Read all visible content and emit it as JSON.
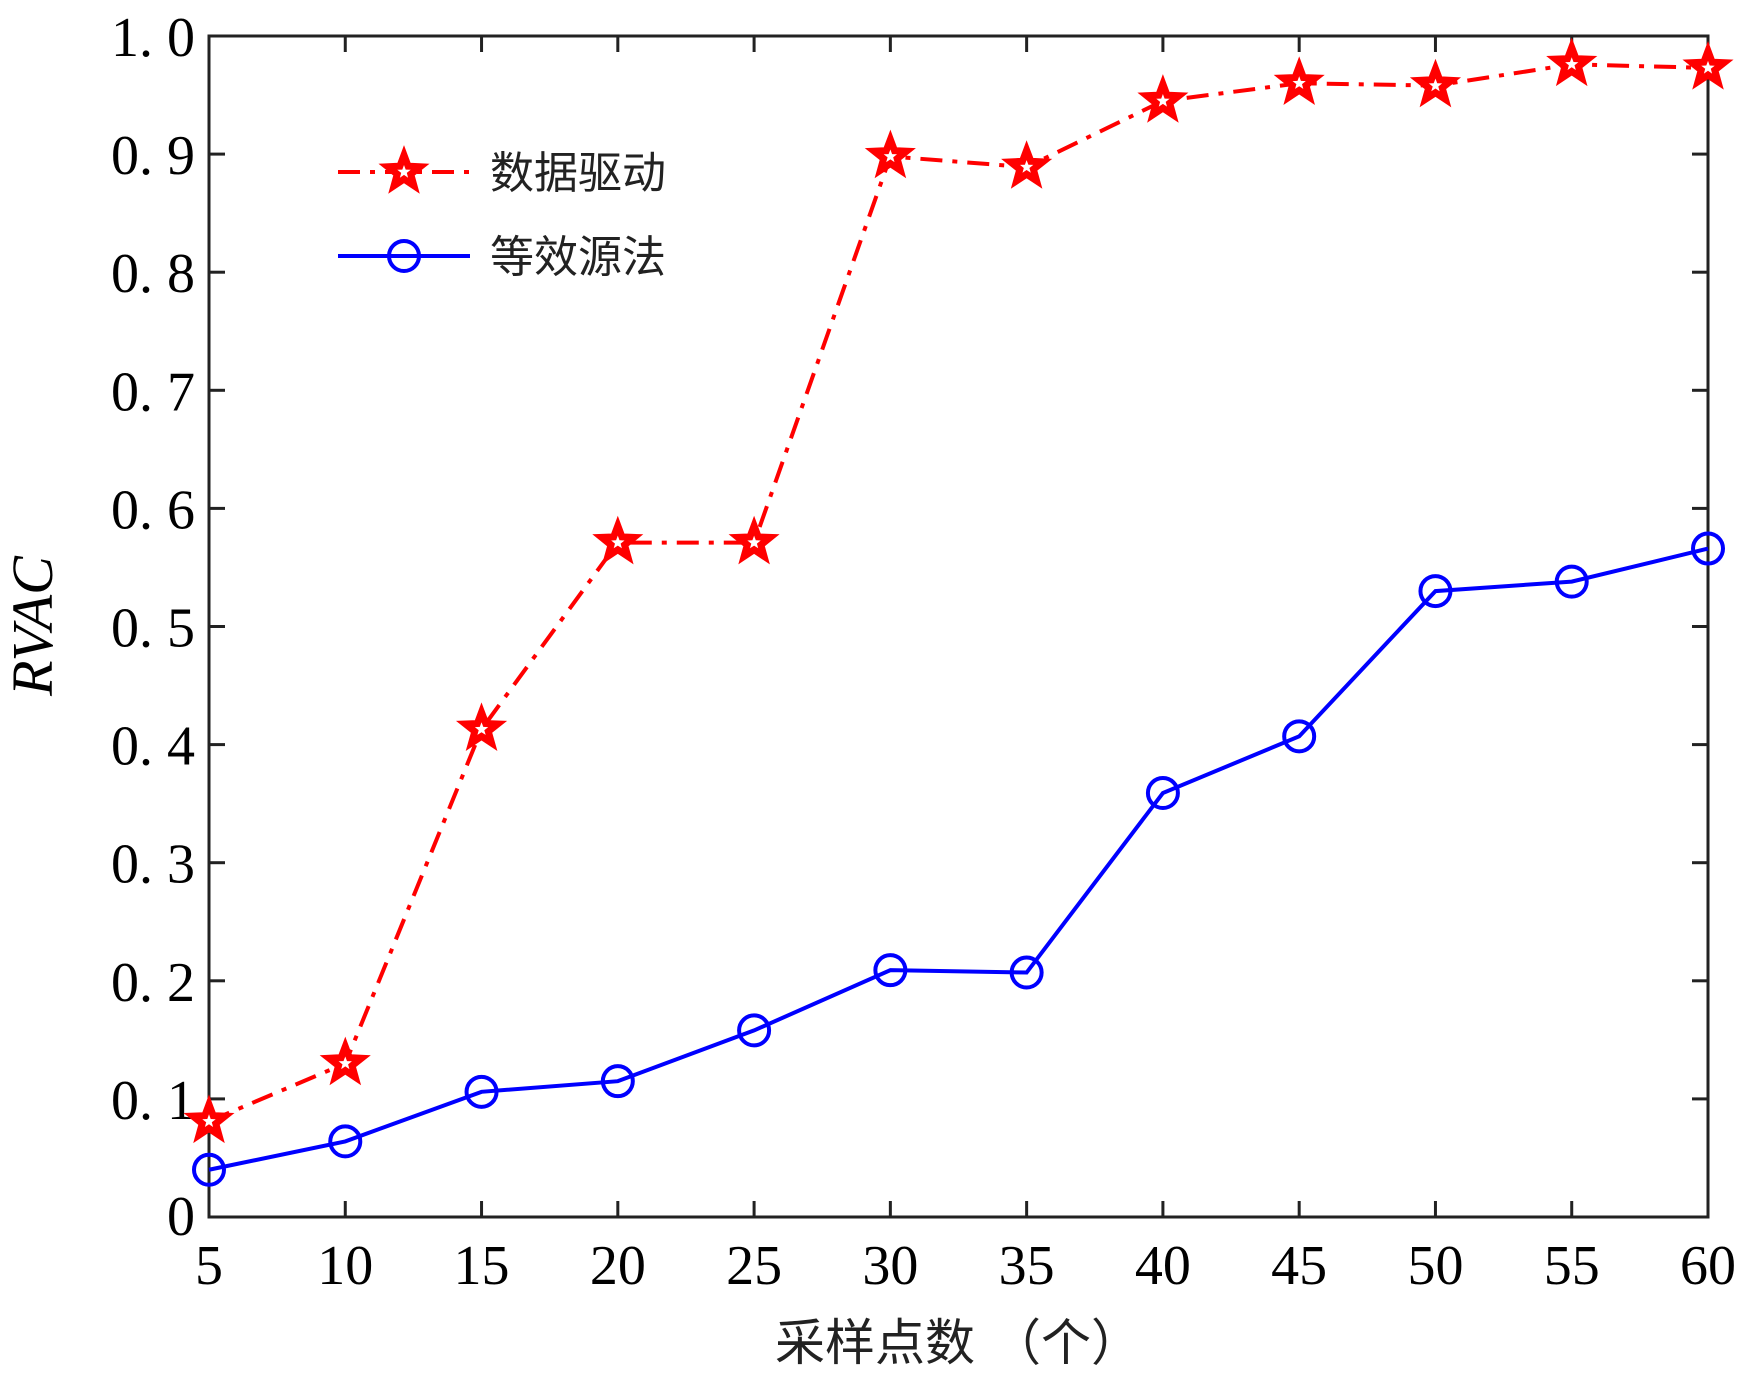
{
  "chart_data": {
    "type": "line",
    "title": "",
    "xlabel": "采样点数 （个）",
    "ylabel": "RVAC",
    "x": [
      5,
      10,
      15,
      20,
      25,
      30,
      35,
      40,
      45,
      50,
      55,
      60
    ],
    "xlim": [
      5,
      60
    ],
    "ylim": [
      0,
      1.0
    ],
    "xticks": [
      5,
      10,
      15,
      20,
      25,
      30,
      35,
      40,
      45,
      50,
      55,
      60
    ],
    "xtick_labels": [
      "5",
      "10",
      "15",
      "20",
      "25",
      "30",
      "35",
      "40",
      "45",
      "50",
      "55",
      "60"
    ],
    "yticks": [
      0,
      0.1,
      0.2,
      0.3,
      0.4,
      0.5,
      0.6,
      0.7,
      0.8,
      0.9,
      1.0
    ],
    "ytick_labels": [
      "0",
      "0. 1",
      "0. 2",
      "0. 3",
      "0. 4",
      "0. 5",
      "0. 6",
      "0. 7",
      "0. 8",
      "0. 9",
      "1. 0"
    ],
    "grid": false,
    "legend_position": "top-left",
    "series": [
      {
        "name": "数据驱动",
        "color": "#ff0000",
        "style": "dash-dot",
        "marker": "star",
        "values": [
          0.081,
          0.13,
          0.413,
          0.571,
          0.571,
          0.898,
          0.889,
          0.945,
          0.96,
          0.958,
          0.976,
          0.973
        ]
      },
      {
        "name": "等效源法",
        "color": "#0000ff",
        "style": "solid",
        "marker": "circle",
        "values": [
          0.04,
          0.064,
          0.106,
          0.115,
          0.158,
          0.209,
          0.207,
          0.359,
          0.407,
          0.53,
          0.538,
          0.566
        ]
      }
    ]
  }
}
